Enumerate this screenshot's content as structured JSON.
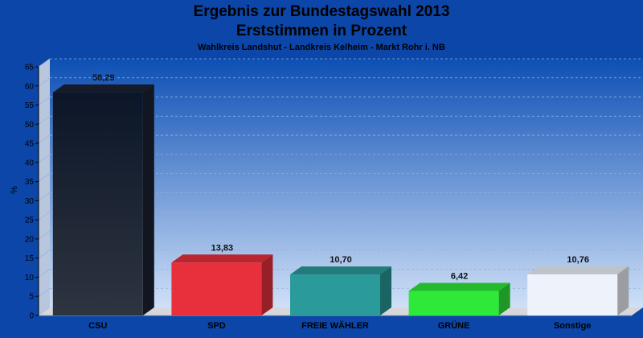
{
  "title_line1": "Ergebnis zur Bundestagswahl 2013",
  "title_line2": "Erststimmen in Prozent",
  "subtitle": "Wahlkreis Landshut - Landkreis Kelheim - Markt Rohr i. NB",
  "chart_data": {
    "type": "bar",
    "ylabel": "%",
    "ylim": [
      0,
      65
    ],
    "yticks": [
      0,
      5,
      10,
      15,
      20,
      25,
      30,
      35,
      40,
      45,
      50,
      55,
      60,
      65
    ],
    "categories": [
      "CSU",
      "SPD",
      "FREIE WÄHLER",
      "GRÜNE",
      "Sonstige"
    ],
    "values": [
      58.29,
      13.83,
      10.7,
      6.42,
      10.76
    ],
    "value_labels": [
      "58,29",
      "13,83",
      "10,70",
      "6,42",
      "10,76"
    ],
    "colors": [
      "#1a2233",
      "#e8303c",
      "#2a9a9a",
      "#2ee83a",
      "#eef2fb"
    ],
    "grid": true,
    "legend": "none"
  }
}
